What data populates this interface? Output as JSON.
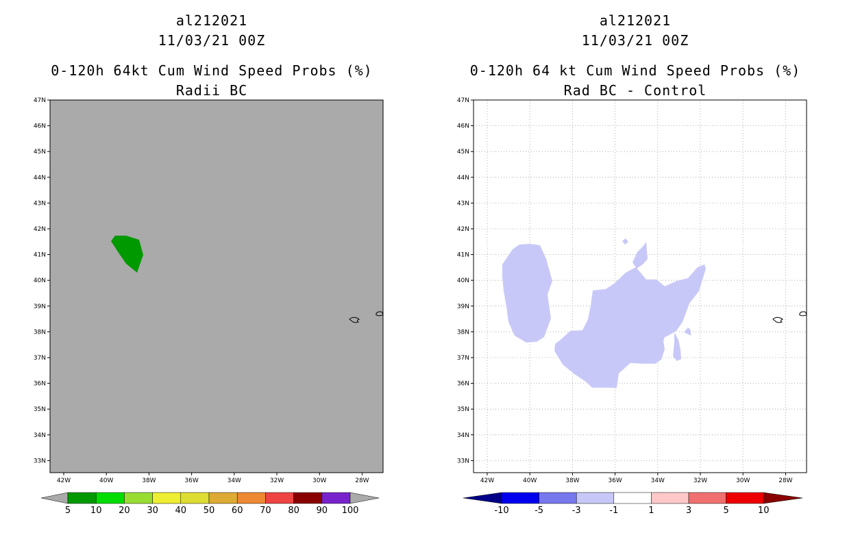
{
  "left": {
    "title_line1": "al212021",
    "title_line2": "11/03/21 00Z",
    "title_line3": "0-120h 64kt Cum Wind Speed Probs (%)",
    "title_line4": "Radii BC",
    "background_color": "#aaaaaa",
    "feature_color": "#009900",
    "colorbar": {
      "labels": [
        "5",
        "10",
        "20",
        "30",
        "40",
        "50",
        "60",
        "70",
        "80",
        "90",
        "100"
      ],
      "colors": [
        "#009900",
        "#00dd00",
        "#99dd33",
        "#eeee33",
        "#dddd33",
        "#ddaa33",
        "#ee8833",
        "#ee4444",
        "#880000",
        "#7722cc"
      ],
      "end_color": "#aaaaaa"
    }
  },
  "right": {
    "title_line1": "al212021",
    "title_line2": "11/03/21 00Z",
    "title_line3": "0-120h 64 kt Cum Wind Speed Probs (%)",
    "title_line4": "Rad BC - Control",
    "background_color": "#ffffff",
    "feature_color": "#c8c8f8",
    "colorbar": {
      "labels": [
        "-10",
        "-5",
        "-3",
        "-1",
        "1",
        "3",
        "5",
        "10"
      ],
      "colors": [
        "#0000ee",
        "#7777ee",
        "#c8c8f8",
        "#ffffff",
        "#ffc8c8",
        "#f07070",
        "#ee0000"
      ],
      "low_color": "#000088",
      "high_color": "#880000"
    }
  },
  "lat_labels": [
    "47N",
    "46N",
    "45N",
    "44N",
    "43N",
    "42N",
    "41N",
    "40N",
    "39N",
    "38N",
    "37N",
    "36N",
    "35N",
    "34N",
    "33N"
  ],
  "lon_labels": [
    "42W",
    "40W",
    "38W",
    "36W",
    "34W",
    "32W",
    "30W",
    "28W"
  ]
}
